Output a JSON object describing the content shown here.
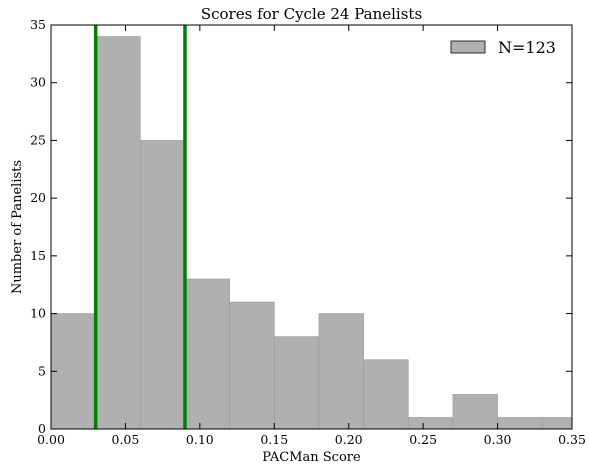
{
  "chart_data": {
    "type": "bar",
    "title": "Scores for Cycle 24 Panelists",
    "xlabel": "PACMan Score",
    "ylabel": "Number of Panelists",
    "xlim": [
      0.0,
      0.35
    ],
    "ylim": [
      0,
      35
    ],
    "xticks": [
      0.0,
      0.05,
      0.1,
      0.15,
      0.2,
      0.25,
      0.3,
      0.35
    ],
    "xtick_labels": [
      "0.00",
      "0.05",
      "0.10",
      "0.15",
      "0.20",
      "0.25",
      "0.30",
      "0.35"
    ],
    "yticks": [
      0,
      5,
      10,
      15,
      20,
      25,
      30,
      35
    ],
    "ytick_labels": [
      "0",
      "5",
      "10",
      "15",
      "20",
      "25",
      "30",
      "35"
    ],
    "bin_edges": [
      0.0,
      0.03,
      0.06,
      0.09,
      0.12,
      0.15,
      0.18,
      0.21,
      0.24,
      0.27,
      0.3,
      0.33,
      0.36
    ],
    "values": [
      10,
      34,
      25,
      13,
      11,
      8,
      10,
      6,
      1,
      3,
      1,
      1
    ],
    "vertical_lines": [
      0.03,
      0.09
    ],
    "colors": {
      "bars": "#b0b0b0",
      "vertical_lines": "#008000"
    },
    "legend": {
      "label": "N=123",
      "placement": "top-right"
    },
    "grid": false
  }
}
